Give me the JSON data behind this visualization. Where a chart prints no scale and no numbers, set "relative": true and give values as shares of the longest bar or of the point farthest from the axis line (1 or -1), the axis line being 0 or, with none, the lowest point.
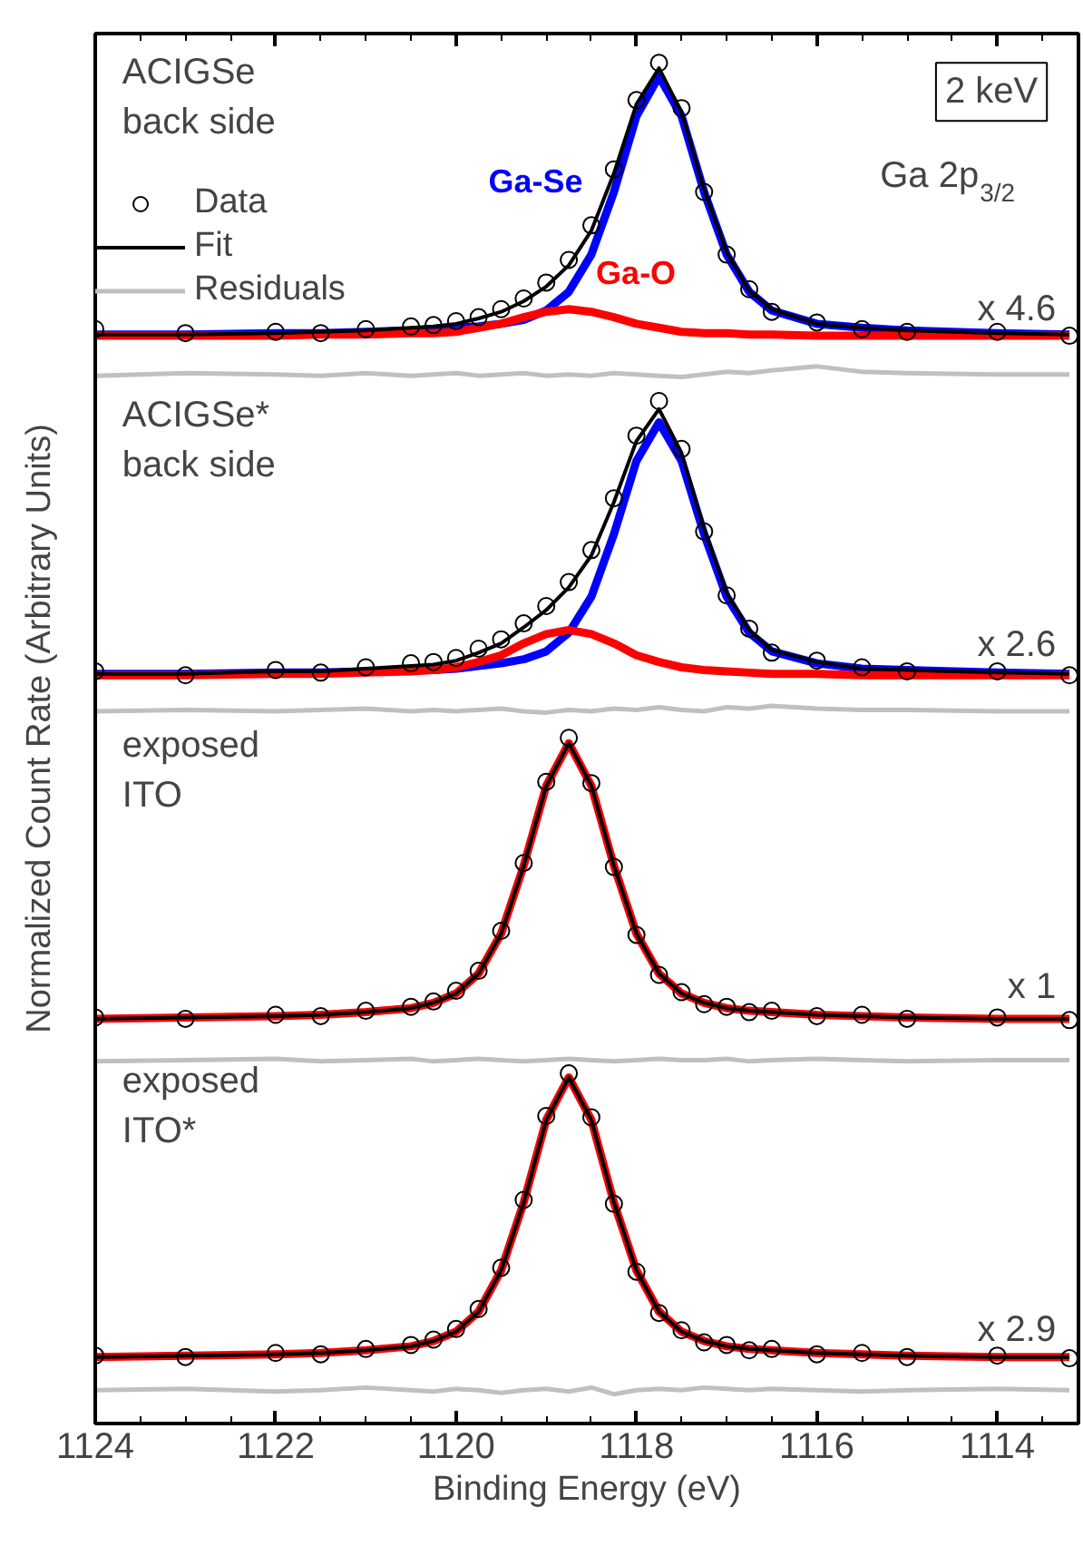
{
  "chart_data": {
    "type": "line",
    "relative": true,
    "xlabel": "Binding Energy (eV)",
    "ylabel": "Normalized Count Rate (Arbitrary Units)",
    "xlim": [
      1124,
      1113.1
    ],
    "xticks": [
      1124,
      1122,
      1120,
      1118,
      1116,
      1114
    ],
    "legend": "top left",
    "grid": false,
    "annotations": [
      "ACIGSe\nback side",
      "ACIGSe*\nback side",
      "exposed\nITO",
      "exposed\nITO*",
      "x 4.6",
      "x 2.6",
      "x 1",
      "x 2.9",
      "2 keV",
      "Ga 2p$_{3/2}$"
    ],
    "x": [
      1124,
      1123,
      1122,
      1121.5,
      1121,
      1120.5,
      1120.25,
      1120,
      1119.75,
      1119.5,
      1119.25,
      1119,
      1118.75,
      1118.5,
      1118.25,
      1118,
      1117.75,
      1117.5,
      1117.25,
      1117,
      1116.75,
      1116.5,
      1116,
      1115.5,
      1115,
      1114,
      1113.2
    ],
    "series": [
      {
        "name": "Data",
        "type": "scatter",
        "marker": "circle",
        "color": "#000000",
        "values": [
          0.8,
          0.797,
          0.798,
          0.797,
          0.8,
          0.802,
          0.803,
          0.806,
          0.809,
          0.815,
          0.823,
          0.835,
          0.852,
          0.878,
          0.92,
          0.972,
          1.0,
          0.966,
          0.903,
          0.856,
          0.83,
          0.813,
          0.805,
          0.8,
          0.798,
          0.798,
          0.795
        ]
      },
      {
        "name": "Fit",
        "color": "#000000",
        "values": [
          0.796,
          0.796,
          0.797,
          0.798,
          0.799,
          0.801,
          0.802,
          0.804,
          0.808,
          0.813,
          0.821,
          0.832,
          0.848,
          0.874,
          0.917,
          0.969,
          0.996,
          0.963,
          0.905,
          0.858,
          0.829,
          0.815,
          0.804,
          0.801,
          0.799,
          0.797,
          0.796
        ]
      },
      {
        "name": "Residuals",
        "color": "#c0c0c0",
        "values": [
          0.765,
          0.767,
          0.766,
          0.765,
          0.767,
          0.765,
          0.766,
          0.767,
          0.765,
          0.766,
          0.767,
          0.765,
          0.766,
          0.765,
          0.767,
          0.766,
          0.765,
          0.764,
          0.766,
          0.768,
          0.767,
          0.769,
          0.772,
          0.768,
          0.767,
          0.766,
          0.766
        ]
      },
      {
        "name": "Ga-Se",
        "color": "#0000ff",
        "values": [
          0.796,
          0.796,
          0.797,
          0.797,
          0.798,
          0.799,
          0.8,
          0.801,
          0.802,
          0.804,
          0.807,
          0.814,
          0.828,
          0.856,
          0.903,
          0.96,
          0.99,
          0.96,
          0.903,
          0.856,
          0.828,
          0.814,
          0.804,
          0.801,
          0.799,
          0.797,
          0.796
        ]
      },
      {
        "name": "Ga-O",
        "color": "#ff0000",
        "values": [
          0.795,
          0.795,
          0.795,
          0.796,
          0.796,
          0.797,
          0.797,
          0.798,
          0.801,
          0.804,
          0.809,
          0.813,
          0.815,
          0.813,
          0.809,
          0.804,
          0.801,
          0.798,
          0.797,
          0.797,
          0.796,
          0.796,
          0.795,
          0.795,
          0.795,
          0.795,
          0.795
        ]
      },
      {
        "type": "scatter",
        "marker": "circle",
        "color": "#000000",
        "values": [
          0.543,
          0.54,
          0.544,
          0.542,
          0.546,
          0.549,
          0.55,
          0.553,
          0.56,
          0.567,
          0.579,
          0.592,
          0.61,
          0.634,
          0.673,
          0.72,
          0.746,
          0.71,
          0.648,
          0.6,
          0.575,
          0.557,
          0.551,
          0.546,
          0.543,
          0.543,
          0.54
        ]
      },
      {
        "color": "#000000",
        "values": [
          0.541,
          0.541,
          0.543,
          0.543,
          0.545,
          0.547,
          0.548,
          0.551,
          0.557,
          0.564,
          0.576,
          0.589,
          0.606,
          0.63,
          0.67,
          0.716,
          0.74,
          0.707,
          0.65,
          0.602,
          0.574,
          0.559,
          0.55,
          0.545,
          0.544,
          0.542,
          0.541
        ]
      },
      {
        "color": "#c0c0c0",
        "values": [
          0.513,
          0.514,
          0.513,
          0.514,
          0.515,
          0.513,
          0.514,
          0.513,
          0.514,
          0.515,
          0.513,
          0.512,
          0.514,
          0.513,
          0.515,
          0.514,
          0.516,
          0.514,
          0.513,
          0.516,
          0.515,
          0.517,
          0.515,
          0.514,
          0.514,
          0.513,
          0.513
        ]
      },
      {
        "color": "#0000ff",
        "values": [
          0.541,
          0.541,
          0.542,
          0.542,
          0.543,
          0.544,
          0.544,
          0.545,
          0.547,
          0.549,
          0.552,
          0.558,
          0.572,
          0.599,
          0.646,
          0.701,
          0.73,
          0.701,
          0.646,
          0.599,
          0.572,
          0.558,
          0.549,
          0.545,
          0.544,
          0.542,
          0.541
        ]
      },
      {
        "color": "#ff0000",
        "values": [
          0.54,
          0.54,
          0.541,
          0.541,
          0.542,
          0.543,
          0.544,
          0.546,
          0.55,
          0.555,
          0.564,
          0.571,
          0.574,
          0.571,
          0.564,
          0.555,
          0.55,
          0.546,
          0.544,
          0.543,
          0.542,
          0.541,
          0.541,
          0.54,
          0.54,
          0.54,
          0.54
        ]
      },
      {
        "type": "scatter",
        "marker": "circle",
        "color": "#000000",
        "values": [
          0.283,
          0.282,
          0.285,
          0.284,
          0.288,
          0.291,
          0.295,
          0.303,
          0.318,
          0.348,
          0.399,
          0.46,
          0.493,
          0.459,
          0.396,
          0.345,
          0.315,
          0.302,
          0.293,
          0.291,
          0.287,
          0.288,
          0.284,
          0.285,
          0.282,
          0.283,
          0.281
        ]
      },
      {
        "color": "#000000",
        "values": [
          0.282,
          0.283,
          0.284,
          0.285,
          0.287,
          0.29,
          0.294,
          0.301,
          0.316,
          0.346,
          0.397,
          0.457,
          0.489,
          0.457,
          0.397,
          0.346,
          0.316,
          0.301,
          0.294,
          0.29,
          0.288,
          0.287,
          0.285,
          0.284,
          0.283,
          0.282,
          0.282
        ]
      },
      {
        "color": "#c0c0c0",
        "values": [
          0.25,
          0.251,
          0.252,
          0.25,
          0.251,
          0.252,
          0.25,
          0.251,
          0.252,
          0.251,
          0.25,
          0.251,
          0.252,
          0.251,
          0.25,
          0.251,
          0.252,
          0.251,
          0.251,
          0.252,
          0.25,
          0.251,
          0.252,
          0.251,
          0.25,
          0.251,
          0.251
        ]
      },
      {
        "color": "#ff0000",
        "values": [
          0.282,
          0.283,
          0.284,
          0.285,
          0.287,
          0.29,
          0.294,
          0.301,
          0.316,
          0.346,
          0.397,
          0.457,
          0.489,
          0.457,
          0.397,
          0.346,
          0.316,
          0.301,
          0.294,
          0.29,
          0.288,
          0.287,
          0.285,
          0.284,
          0.283,
          0.282,
          0.282
        ]
      },
      {
        "type": "scatter",
        "marker": "circle",
        "color": "#000000",
        "values": [
          0.029,
          0.028,
          0.031,
          0.03,
          0.034,
          0.037,
          0.041,
          0.049,
          0.064,
          0.095,
          0.146,
          0.209,
          0.241,
          0.208,
          0.143,
          0.092,
          0.061,
          0.048,
          0.039,
          0.037,
          0.033,
          0.034,
          0.03,
          0.031,
          0.028,
          0.029,
          0.027
        ]
      },
      {
        "color": "#000000",
        "values": [
          0.028,
          0.029,
          0.03,
          0.031,
          0.033,
          0.036,
          0.04,
          0.047,
          0.062,
          0.093,
          0.144,
          0.206,
          0.238,
          0.206,
          0.144,
          0.093,
          0.062,
          0.047,
          0.04,
          0.036,
          0.034,
          0.033,
          0.031,
          0.03,
          0.029,
          0.028,
          0.028
        ]
      },
      {
        "color": "#c0c0c0",
        "values": [
          0.003,
          0.004,
          0.002,
          0.003,
          0.005,
          0.003,
          0.002,
          0.004,
          0.003,
          0.001,
          0.003,
          0.004,
          0.002,
          0.005,
          0.0,
          0.003,
          0.004,
          0.003,
          0.005,
          0.004,
          0.003,
          0.004,
          0.003,
          0.002,
          0.003,
          0.004,
          0.003
        ]
      },
      {
        "color": "#ff0000",
        "values": [
          0.028,
          0.029,
          0.03,
          0.031,
          0.033,
          0.036,
          0.04,
          0.047,
          0.062,
          0.093,
          0.144,
          0.206,
          0.238,
          0.206,
          0.144,
          0.093,
          0.062,
          0.047,
          0.04,
          0.036,
          0.034,
          0.033,
          0.031,
          0.03,
          0.029,
          0.028,
          0.028
        ]
      }
    ]
  }
}
